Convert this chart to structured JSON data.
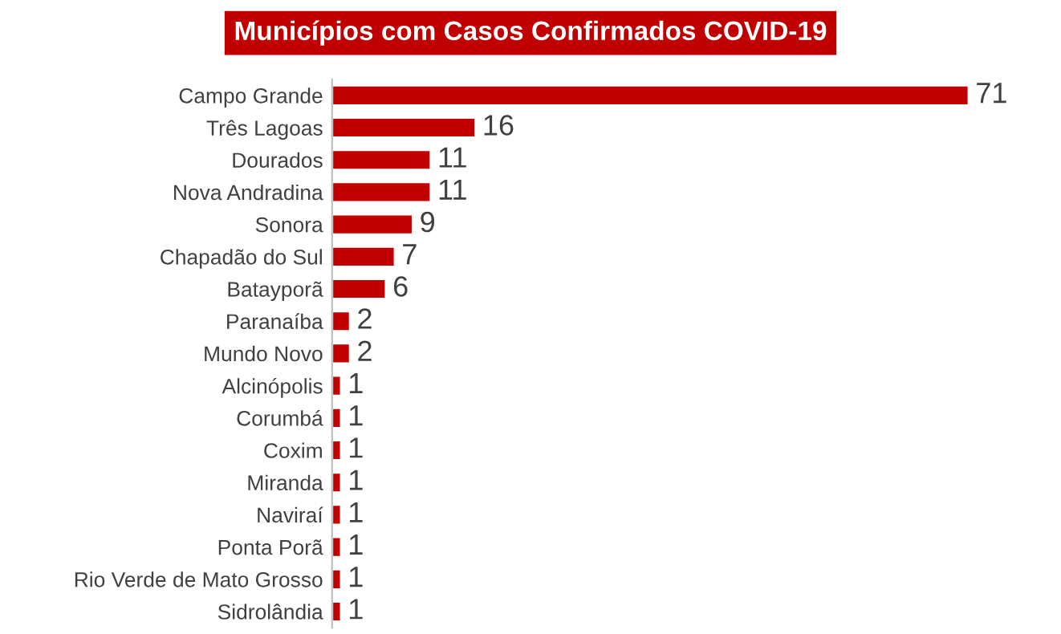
{
  "chart_data": {
    "type": "bar",
    "orientation": "horizontal",
    "title": "Municípios com Casos Confirmados COVID-19",
    "categories": [
      "Campo Grande",
      "Três Lagoas",
      "Dourados",
      "Nova Andradina",
      "Sonora",
      "Chapadão do Sul",
      "Batayporã",
      "Paranaíba",
      "Mundo Novo",
      "Alcinópolis",
      "Corumbá",
      "Coxim",
      "Miranda",
      "Naviraí",
      "Ponta Porã",
      "Rio Verde de Mato Grosso",
      "Sidrolândia"
    ],
    "values": [
      71,
      16,
      11,
      11,
      9,
      7,
      6,
      2,
      2,
      1,
      1,
      1,
      1,
      1,
      1,
      1,
      1
    ],
    "color": "#c00000",
    "data_labels": true,
    "grid": false,
    "legend": false
  }
}
